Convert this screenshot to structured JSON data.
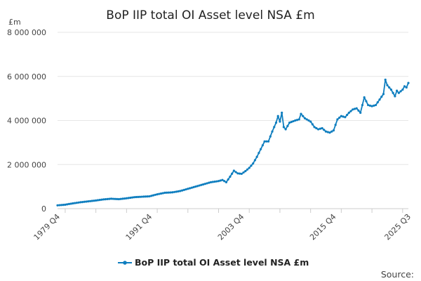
{
  "chart_data": {
    "type": "line",
    "title": "BoP IIP total OI Asset level NSA £m",
    "ylabel": "£m",
    "xlabel": "",
    "ylim": [
      0,
      8000000
    ],
    "yticks": [
      0,
      2000000,
      4000000,
      6000000,
      8000000
    ],
    "ytick_labels": [
      "0",
      "2 000 000",
      "4 000 000",
      "6 000 000",
      "8 000 000"
    ],
    "xticks": [
      "1979 Q4",
      "1991 Q4",
      "2003 Q4",
      "2015 Q4",
      "2025 Q3"
    ],
    "grid": true,
    "legend_position": "bottom",
    "marker": "circle",
    "color": "#0f7ebf",
    "series": [
      {
        "name": "BoP IIP total OI Asset level NSA £m",
        "points": [
          [
            "1979 Q4",
            150000
          ],
          [
            "1980 Q4",
            180000
          ],
          [
            "1981 Q4",
            240000
          ],
          [
            "1982 Q4",
            290000
          ],
          [
            "1983 Q4",
            330000
          ],
          [
            "1984 Q4",
            370000
          ],
          [
            "1985 Q4",
            420000
          ],
          [
            "1986 Q4",
            450000
          ],
          [
            "1987 Q4",
            430000
          ],
          [
            "1988 Q4",
            470000
          ],
          [
            "1989 Q4",
            520000
          ],
          [
            "1990 Q4",
            540000
          ],
          [
            "1991 Q4",
            560000
          ],
          [
            "1992 Q4",
            650000
          ],
          [
            "1993 Q4",
            720000
          ],
          [
            "1994 Q4",
            740000
          ],
          [
            "1995 Q4",
            800000
          ],
          [
            "1996 Q4",
            900000
          ],
          [
            "1997 Q4",
            1000000
          ],
          [
            "1998 Q4",
            1100000
          ],
          [
            "1999 Q4",
            1200000
          ],
          [
            "2000 Q4",
            1250000
          ],
          [
            "2001 Q2",
            1300000
          ],
          [
            "2001 Q4",
            1200000
          ],
          [
            "2002 Q2",
            1450000
          ],
          [
            "2002 Q4",
            1720000
          ],
          [
            "2003 Q2",
            1600000
          ],
          [
            "2003 Q4",
            1580000
          ],
          [
            "2004 Q2",
            1700000
          ],
          [
            "2004 Q4",
            1850000
          ],
          [
            "2005 Q2",
            2050000
          ],
          [
            "2005 Q4",
            2350000
          ],
          [
            "2006 Q2",
            2700000
          ],
          [
            "2006 Q4",
            3050000
          ],
          [
            "2007 Q2",
            3050000
          ],
          [
            "2007 Q4",
            3500000
          ],
          [
            "2008 Q2",
            3900000
          ],
          [
            "2008 Q3",
            4200000
          ],
          [
            "2008 Q4",
            3950000
          ],
          [
            "2009 Q1",
            4350000
          ],
          [
            "2009 Q2",
            3700000
          ],
          [
            "2009 Q3",
            3600000
          ],
          [
            "2010 Q1",
            3900000
          ],
          [
            "2010 Q4",
            4000000
          ],
          [
            "2011 Q2",
            4050000
          ],
          [
            "2011 Q3",
            4300000
          ],
          [
            "2012 Q1",
            4100000
          ],
          [
            "2012 Q4",
            3950000
          ],
          [
            "2013 Q2",
            3700000
          ],
          [
            "2013 Q4",
            3600000
          ],
          [
            "2014 Q2",
            3650000
          ],
          [
            "2014 Q4",
            3500000
          ],
          [
            "2015 Q2",
            3450000
          ],
          [
            "2015 Q4",
            3550000
          ],
          [
            "2016 Q2",
            4050000
          ],
          [
            "2016 Q4",
            4200000
          ],
          [
            "2017 Q2",
            4150000
          ],
          [
            "2017 Q4",
            4350000
          ],
          [
            "2018 Q2",
            4500000
          ],
          [
            "2018 Q4",
            4550000
          ],
          [
            "2019 Q2",
            4350000
          ],
          [
            "2019 Q4",
            5050000
          ],
          [
            "2020 Q2",
            4700000
          ],
          [
            "2020 Q4",
            4650000
          ],
          [
            "2021 Q2",
            4700000
          ],
          [
            "2021 Q4",
            4950000
          ],
          [
            "2022 Q2",
            5200000
          ],
          [
            "2022 Q3",
            5850000
          ],
          [
            "2022 Q4",
            5600000
          ],
          [
            "2023 Q2",
            5400000
          ],
          [
            "2023 Q4",
            5100000
          ],
          [
            "2024 Q1",
            5350000
          ],
          [
            "2024 Q2",
            5250000
          ],
          [
            "2024 Q4",
            5400000
          ],
          [
            "2025 Q1",
            5550000
          ],
          [
            "2025 Q2",
            5500000
          ],
          [
            "2025 Q3",
            5700000
          ]
        ]
      }
    ]
  },
  "footer": {
    "source_label": "Source:"
  }
}
